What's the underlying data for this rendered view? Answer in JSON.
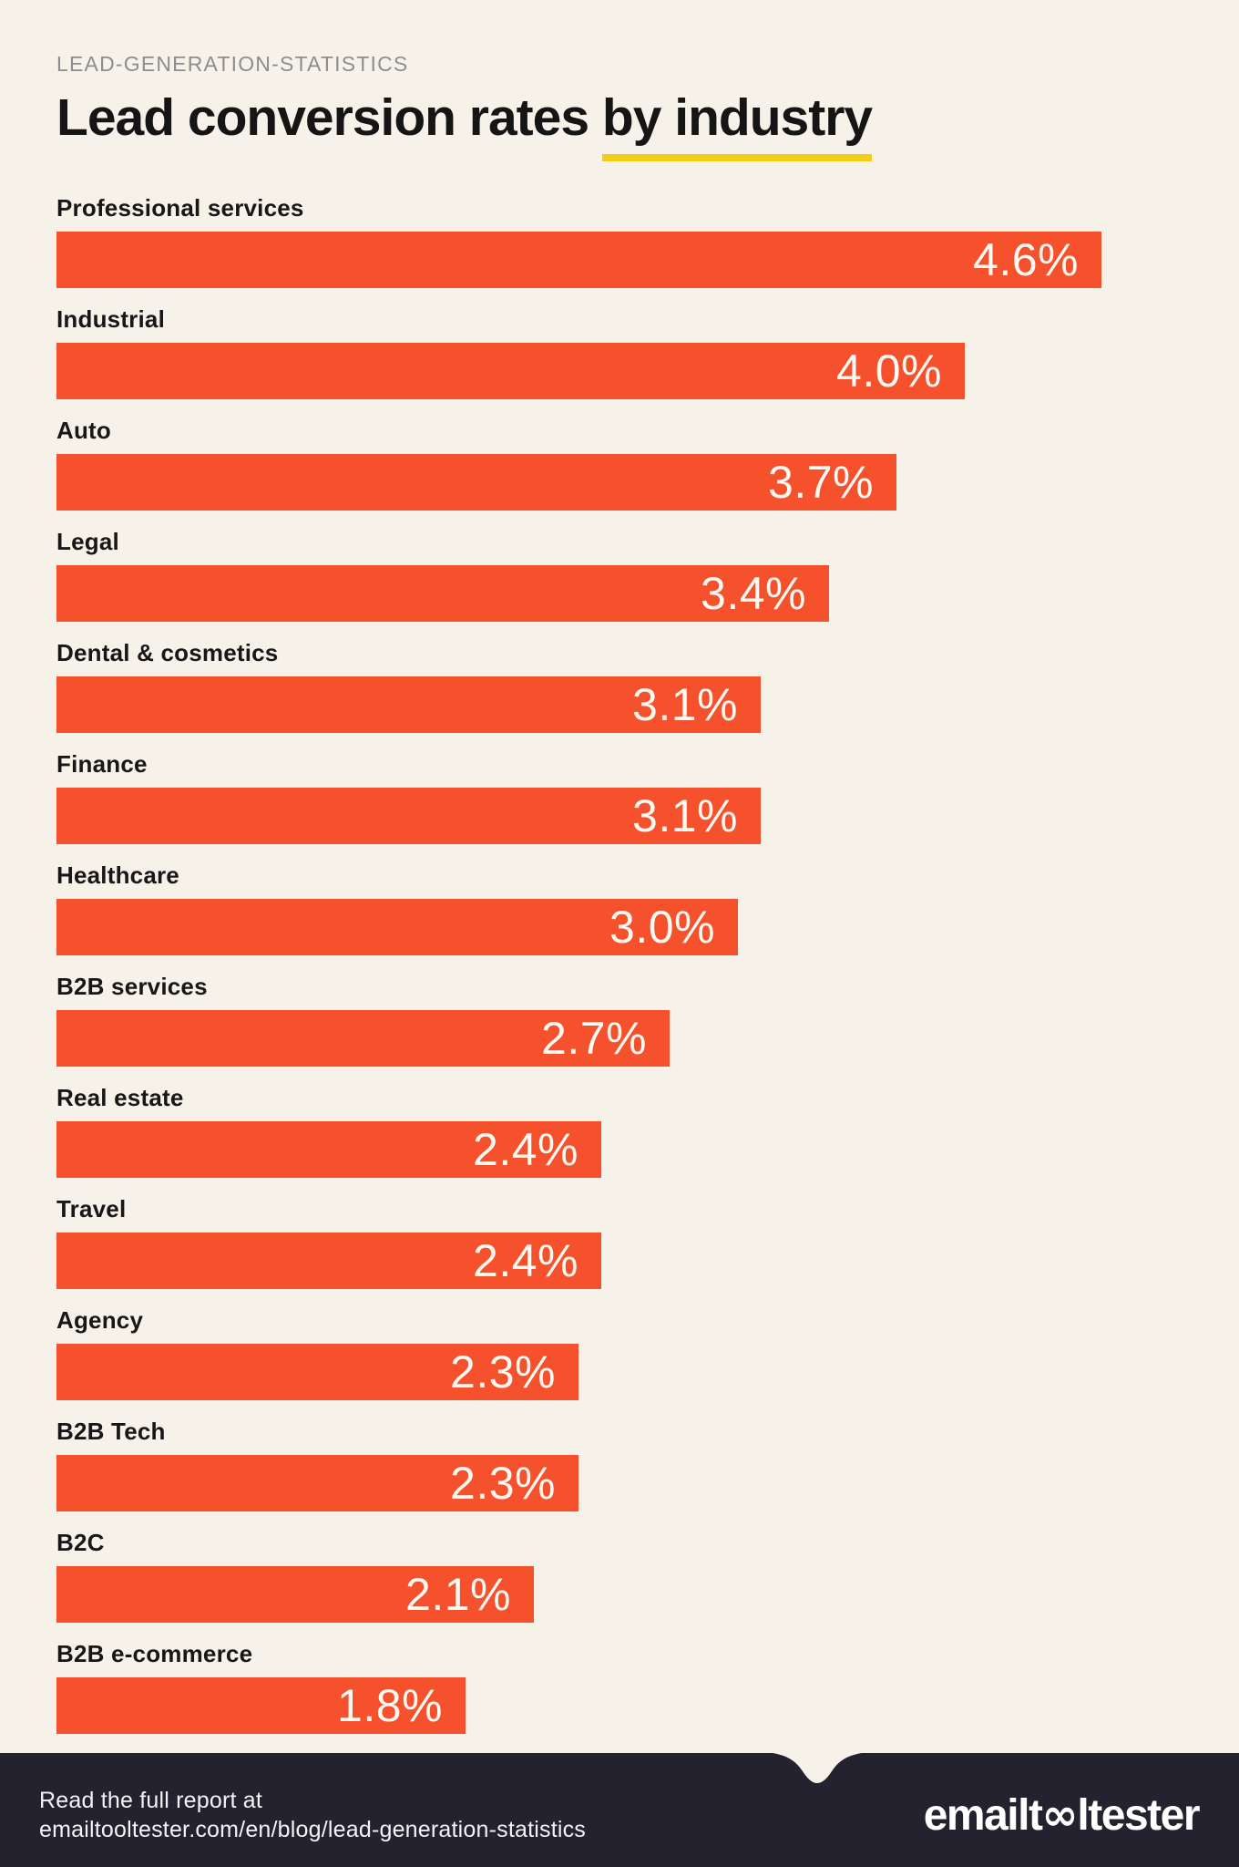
{
  "header": {
    "eyebrow": "LEAD-GENERATION-STATISTICS",
    "title_plain": "Lead conversion rates",
    "title_underlined": "by industry",
    "title_full": "Lead conversion rates by industry"
  },
  "chart_data": {
    "type": "bar",
    "orientation": "horizontal",
    "title": "Lead conversion rates by industry",
    "unit": "%",
    "axis_visible": false,
    "legend": "none",
    "value_label_position": "inside-right",
    "categories": [
      "Professional services",
      "Industrial",
      "Auto",
      "Legal",
      "Dental & cosmetics",
      "Finance",
      "Healthcare",
      "B2B services",
      "Real estate",
      "Travel",
      "Agency",
      "B2B Tech",
      "B2C",
      "B2B e-commerce"
    ],
    "values": [
      4.6,
      4.0,
      3.7,
      3.4,
      3.1,
      3.1,
      3.0,
      2.7,
      2.4,
      2.4,
      2.3,
      2.3,
      2.1,
      1.8
    ],
    "value_labels": [
      "4.6%",
      "4.0%",
      "3.7%",
      "3.4%",
      "3.1%",
      "3.1%",
      "3.0%",
      "2.7%",
      "2.4%",
      "2.4%",
      "2.3%",
      "2.3%",
      "2.1%",
      "1.8%"
    ]
  },
  "footer": {
    "line1": "Read the full report at",
    "line2": "emailtooltester.com/en/blog/lead-generation-statistics",
    "logo_prefix": "emailt",
    "logo_infinity": "∞",
    "logo_suffix": "ltester",
    "logo_text": "emailtooltester"
  },
  "colors": {
    "background": "#F7F2E9",
    "bar": "#F4512C",
    "accent_underline": "#F4CE14",
    "footer_background": "#23222E",
    "label_text": "#171717",
    "eyebrow_text": "#8D8D8D",
    "bar_value_text": "#FDF9F3"
  }
}
